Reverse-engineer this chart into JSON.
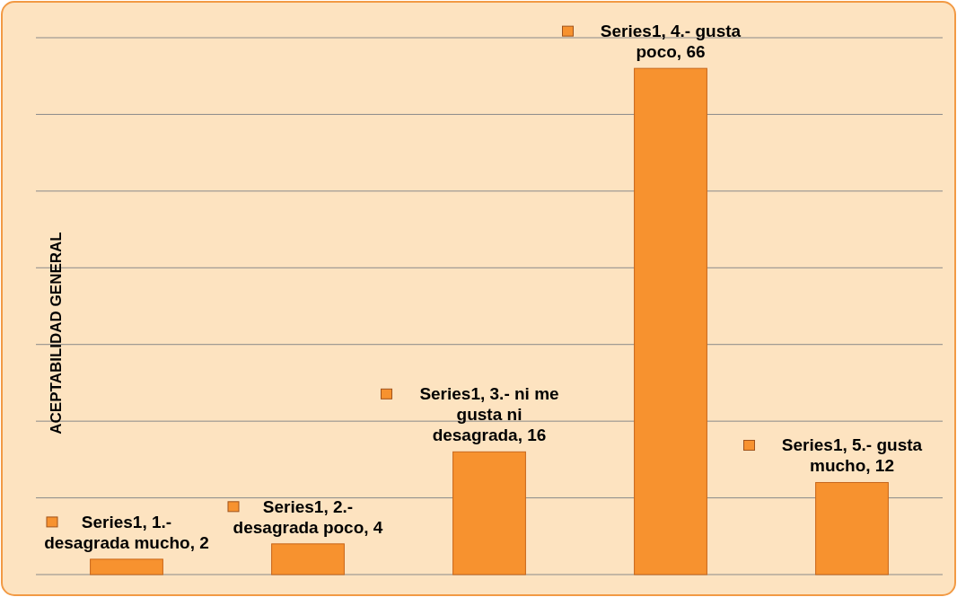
{
  "chart_data": {
    "type": "bar",
    "ylabel": "ACEPTABILIDAD GENERAL",
    "categories": [
      null,
      null,
      null,
      null,
      null
    ],
    "values": [
      2,
      4,
      16,
      66,
      12
    ],
    "value_labels": [
      "Series1, 1.- desagrada mucho, 2",
      "Series1, 2.- desagrada poco, 4",
      "Series1, 3.- ni me gusta ni desagrada, 16",
      "Series1, 4.- gusta poco, 66",
      "Series1, 5.- gusta mucho, 12"
    ],
    "color": "#f7922f",
    "ylim": [
      0,
      70
    ],
    "yticks": [
      {
        "value": 0,
        "label": null
      },
      {
        "value": 10,
        "label": null
      },
      {
        "value": 20,
        "label": null
      },
      {
        "value": 30,
        "label": null
      },
      {
        "value": 40,
        "label": null
      },
      {
        "value": 50,
        "label": null
      },
      {
        "value": 60,
        "label": null
      },
      {
        "value": 70,
        "label": null
      }
    ],
    "grid": true
  }
}
